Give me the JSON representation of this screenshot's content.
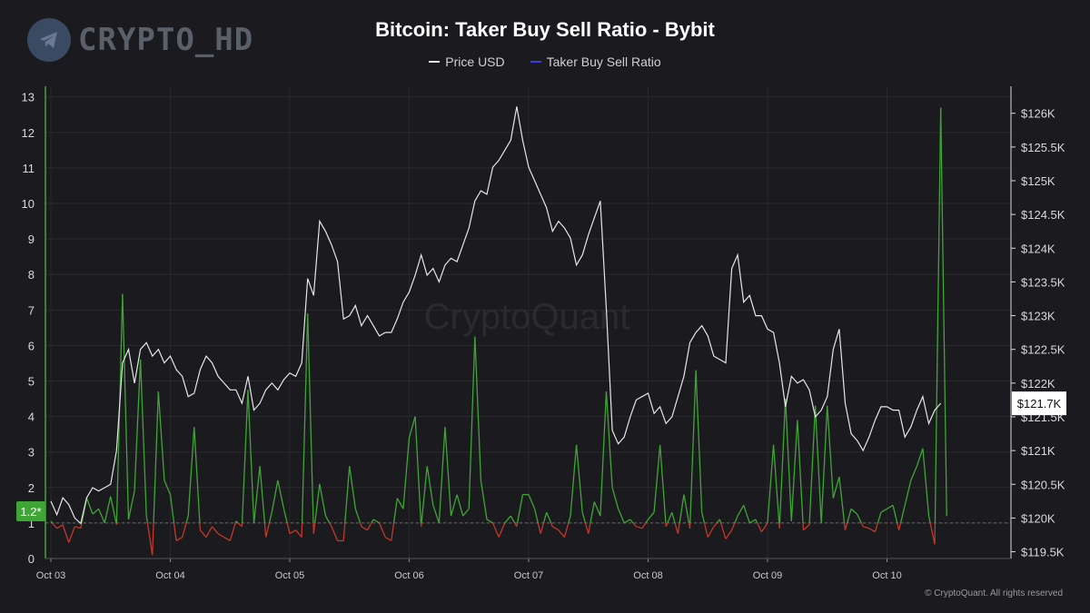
{
  "brand": {
    "name": "CRYPTO_HD",
    "icon": "telegram-icon"
  },
  "watermark": "CryptoQuant",
  "footer": "© CryptoQuant. All rights reserved",
  "chart_data": {
    "type": "line",
    "title": "Bitcoin: Taker Buy Sell Ratio - Bybit",
    "legend_placement": "top-center",
    "grid": true,
    "colors": {
      "price": "#e6e6e6",
      "ratio_legend": "#3b3bd6",
      "ratio_up": "#3fa535",
      "ratio_down": "#c0392b",
      "badge": "#3fa535",
      "background": "#1b1b1f"
    },
    "x_ticks": [
      "Oct 03",
      "Oct 04",
      "Oct 05",
      "Oct 06",
      "Oct 07",
      "Oct 08",
      "Oct 09",
      "Oct 10"
    ],
    "x_range_days": [
      0,
      8.0
    ],
    "left_axis": {
      "ticks": [
        "0",
        "1",
        "2",
        "3",
        "4",
        "5",
        "6",
        "7",
        "8",
        "9",
        "10",
        "11",
        "12",
        "13"
      ],
      "range": [
        0,
        13.3
      ]
    },
    "right_axis": {
      "ticks": [
        "$119.5K",
        "$120K",
        "$120.5K",
        "$121K",
        "$121.5K",
        "$122K",
        "$122.5K",
        "$123K",
        "$123.5K",
        "$124K",
        "$124.5K",
        "$125K",
        "$125.5K",
        "$126K"
      ],
      "range": [
        119400,
        126400
      ]
    },
    "baseline": 1,
    "ratio_badge": "1.2*",
    "price_badge": "$121.7K",
    "series": [
      {
        "name": "Price USD",
        "axis": "right",
        "points": [
          [
            0.0,
            120.25
          ],
          [
            0.05,
            120.05
          ],
          [
            0.1,
            120.3
          ],
          [
            0.15,
            120.2
          ],
          [
            0.2,
            120.0
          ],
          [
            0.25,
            119.92
          ],
          [
            0.3,
            120.3
          ],
          [
            0.35,
            120.45
          ],
          [
            0.4,
            120.4
          ],
          [
            0.45,
            120.45
          ],
          [
            0.5,
            120.5
          ],
          [
            0.55,
            121.0
          ],
          [
            0.6,
            122.3
          ],
          [
            0.65,
            122.5
          ],
          [
            0.7,
            122.0
          ],
          [
            0.75,
            122.5
          ],
          [
            0.8,
            122.6
          ],
          [
            0.85,
            122.4
          ],
          [
            0.9,
            122.5
          ],
          [
            0.95,
            122.3
          ],
          [
            1.0,
            122.4
          ],
          [
            1.05,
            122.2
          ],
          [
            1.1,
            122.1
          ],
          [
            1.15,
            121.8
          ],
          [
            1.2,
            121.85
          ],
          [
            1.25,
            122.2
          ],
          [
            1.3,
            122.4
          ],
          [
            1.35,
            122.3
          ],
          [
            1.4,
            122.1
          ],
          [
            1.45,
            122.0
          ],
          [
            1.5,
            121.9
          ],
          [
            1.55,
            121.9
          ],
          [
            1.6,
            121.7
          ],
          [
            1.65,
            122.1
          ],
          [
            1.7,
            121.6
          ],
          [
            1.75,
            121.7
          ],
          [
            1.8,
            121.9
          ],
          [
            1.85,
            122.0
          ],
          [
            1.9,
            121.9
          ],
          [
            1.95,
            122.05
          ],
          [
            2.0,
            122.15
          ],
          [
            2.05,
            122.1
          ],
          [
            2.1,
            122.3
          ],
          [
            2.15,
            123.55
          ],
          [
            2.2,
            123.3
          ],
          [
            2.25,
            124.4
          ],
          [
            2.3,
            124.25
          ],
          [
            2.35,
            124.05
          ],
          [
            2.4,
            123.8
          ],
          [
            2.45,
            122.95
          ],
          [
            2.5,
            123.0
          ],
          [
            2.55,
            123.15
          ],
          [
            2.6,
            122.85
          ],
          [
            2.65,
            123.0
          ],
          [
            2.7,
            122.85
          ],
          [
            2.75,
            122.7
          ],
          [
            2.8,
            122.75
          ],
          [
            2.85,
            122.75
          ],
          [
            2.9,
            122.95
          ],
          [
            2.95,
            123.2
          ],
          [
            3.0,
            123.35
          ],
          [
            3.05,
            123.6
          ],
          [
            3.1,
            123.9
          ],
          [
            3.15,
            123.6
          ],
          [
            3.2,
            123.7
          ],
          [
            3.25,
            123.5
          ],
          [
            3.3,
            123.75
          ],
          [
            3.35,
            123.85
          ],
          [
            3.4,
            123.8
          ],
          [
            3.45,
            124.05
          ],
          [
            3.5,
            124.3
          ],
          [
            3.55,
            124.7
          ],
          [
            3.6,
            124.85
          ],
          [
            3.65,
            124.8
          ],
          [
            3.7,
            125.2
          ],
          [
            3.75,
            125.3
          ],
          [
            3.8,
            125.45
          ],
          [
            3.85,
            125.6
          ],
          [
            3.9,
            126.1
          ],
          [
            3.95,
            125.6
          ],
          [
            4.0,
            125.2
          ],
          [
            4.05,
            125.0
          ],
          [
            4.1,
            124.8
          ],
          [
            4.15,
            124.6
          ],
          [
            4.2,
            124.25
          ],
          [
            4.25,
            124.4
          ],
          [
            4.3,
            124.3
          ],
          [
            4.35,
            124.15
          ],
          [
            4.4,
            123.75
          ],
          [
            4.45,
            123.9
          ],
          [
            4.5,
            124.2
          ],
          [
            4.55,
            124.45
          ],
          [
            4.6,
            124.7
          ],
          [
            4.65,
            123.1
          ],
          [
            4.7,
            121.3
          ],
          [
            4.75,
            121.1
          ],
          [
            4.8,
            121.2
          ],
          [
            4.85,
            121.5
          ],
          [
            4.9,
            121.75
          ],
          [
            4.95,
            121.8
          ],
          [
            5.0,
            121.85
          ],
          [
            5.05,
            121.55
          ],
          [
            5.1,
            121.65
          ],
          [
            5.15,
            121.4
          ],
          [
            5.2,
            121.5
          ],
          [
            5.25,
            121.8
          ],
          [
            5.3,
            122.1
          ],
          [
            5.35,
            122.6
          ],
          [
            5.4,
            122.75
          ],
          [
            5.45,
            122.85
          ],
          [
            5.5,
            122.7
          ],
          [
            5.55,
            122.4
          ],
          [
            5.6,
            122.35
          ],
          [
            5.65,
            122.3
          ],
          [
            5.7,
            123.7
          ],
          [
            5.75,
            123.9
          ],
          [
            5.8,
            123.2
          ],
          [
            5.85,
            123.3
          ],
          [
            5.9,
            123.0
          ],
          [
            5.95,
            123.0
          ],
          [
            6.0,
            122.8
          ],
          [
            6.05,
            122.75
          ],
          [
            6.1,
            122.3
          ],
          [
            6.15,
            121.65
          ],
          [
            6.2,
            122.1
          ],
          [
            6.25,
            122.0
          ],
          [
            6.3,
            122.05
          ],
          [
            6.35,
            121.9
          ],
          [
            6.4,
            121.5
          ],
          [
            6.45,
            121.6
          ],
          [
            6.5,
            121.8
          ],
          [
            6.55,
            122.5
          ],
          [
            6.6,
            122.8
          ],
          [
            6.65,
            121.7
          ],
          [
            6.7,
            121.25
          ],
          [
            6.75,
            121.15
          ],
          [
            6.8,
            121.0
          ],
          [
            6.85,
            121.2
          ],
          [
            6.9,
            121.45
          ],
          [
            6.95,
            121.65
          ],
          [
            7.0,
            121.65
          ],
          [
            7.05,
            121.6
          ],
          [
            7.1,
            121.6
          ],
          [
            7.15,
            121.2
          ],
          [
            7.2,
            121.35
          ],
          [
            7.25,
            121.6
          ],
          [
            7.3,
            121.8
          ],
          [
            7.35,
            121.4
          ],
          [
            7.4,
            121.6
          ],
          [
            7.45,
            121.7
          ]
        ]
      },
      {
        "name": "Taker Buy Sell Ratio",
        "axis": "left",
        "points": [
          [
            0.0,
            1.05
          ],
          [
            0.05,
            0.85
          ],
          [
            0.1,
            0.95
          ],
          [
            0.15,
            0.45
          ],
          [
            0.2,
            0.9
          ],
          [
            0.25,
            0.85
          ],
          [
            0.3,
            1.7
          ],
          [
            0.35,
            1.25
          ],
          [
            0.4,
            1.4
          ],
          [
            0.45,
            1.0
          ],
          [
            0.5,
            1.75
          ],
          [
            0.55,
            0.95
          ],
          [
            0.6,
            7.45
          ],
          [
            0.65,
            1.1
          ],
          [
            0.7,
            1.9
          ],
          [
            0.75,
            5.6
          ],
          [
            0.8,
            1.2
          ],
          [
            0.85,
            0.1
          ],
          [
            0.9,
            4.7
          ],
          [
            0.95,
            2.2
          ],
          [
            1.0,
            1.8
          ],
          [
            1.05,
            0.5
          ],
          [
            1.1,
            0.6
          ],
          [
            1.15,
            1.2
          ],
          [
            1.2,
            3.7
          ],
          [
            1.25,
            0.8
          ],
          [
            1.3,
            0.6
          ],
          [
            1.35,
            0.9
          ],
          [
            1.4,
            0.7
          ],
          [
            1.45,
            0.6
          ],
          [
            1.5,
            0.5
          ],
          [
            1.55,
            1.05
          ],
          [
            1.6,
            0.9
          ],
          [
            1.65,
            4.75
          ],
          [
            1.7,
            1.0
          ],
          [
            1.75,
            2.6
          ],
          [
            1.8,
            0.6
          ],
          [
            1.85,
            1.3
          ],
          [
            1.9,
            2.2
          ],
          [
            1.95,
            1.4
          ],
          [
            2.0,
            0.7
          ],
          [
            2.05,
            0.8
          ],
          [
            2.1,
            0.6
          ],
          [
            2.15,
            6.9
          ],
          [
            2.2,
            0.7
          ],
          [
            2.25,
            2.1
          ],
          [
            2.3,
            1.2
          ],
          [
            2.35,
            0.9
          ],
          [
            2.4,
            0.5
          ],
          [
            2.45,
            0.5
          ],
          [
            2.5,
            2.6
          ],
          [
            2.55,
            1.4
          ],
          [
            2.6,
            0.9
          ],
          [
            2.65,
            0.8
          ],
          [
            2.7,
            1.1
          ],
          [
            2.75,
            1.0
          ],
          [
            2.8,
            0.6
          ],
          [
            2.85,
            0.5
          ],
          [
            2.9,
            1.7
          ],
          [
            2.95,
            1.4
          ],
          [
            3.0,
            3.4
          ],
          [
            3.05,
            4.0
          ],
          [
            3.1,
            0.9
          ],
          [
            3.15,
            2.6
          ],
          [
            3.2,
            1.5
          ],
          [
            3.25,
            1.0
          ],
          [
            3.3,
            3.7
          ],
          [
            3.35,
            1.2
          ],
          [
            3.4,
            1.8
          ],
          [
            3.45,
            1.2
          ],
          [
            3.5,
            1.4
          ],
          [
            3.55,
            6.25
          ],
          [
            3.6,
            2.2
          ],
          [
            3.65,
            1.1
          ],
          [
            3.7,
            1.0
          ],
          [
            3.75,
            0.6
          ],
          [
            3.8,
            1.0
          ],
          [
            3.85,
            1.2
          ],
          [
            3.9,
            0.9
          ],
          [
            3.95,
            1.8
          ],
          [
            4.0,
            1.8
          ],
          [
            4.05,
            1.4
          ],
          [
            4.1,
            0.7
          ],
          [
            4.15,
            1.3
          ],
          [
            4.2,
            0.9
          ],
          [
            4.25,
            0.8
          ],
          [
            4.3,
            0.6
          ],
          [
            4.35,
            1.2
          ],
          [
            4.4,
            3.2
          ],
          [
            4.45,
            1.3
          ],
          [
            4.5,
            0.7
          ],
          [
            4.55,
            1.6
          ],
          [
            4.6,
            1.2
          ],
          [
            4.65,
            4.7
          ],
          [
            4.7,
            2.0
          ],
          [
            4.75,
            1.4
          ],
          [
            4.8,
            1.0
          ],
          [
            4.85,
            1.1
          ],
          [
            4.9,
            0.9
          ],
          [
            4.95,
            0.85
          ],
          [
            5.0,
            1.1
          ],
          [
            5.05,
            1.3
          ],
          [
            5.1,
            3.2
          ],
          [
            5.15,
            0.9
          ],
          [
            5.2,
            1.3
          ],
          [
            5.25,
            0.7
          ],
          [
            5.3,
            1.8
          ],
          [
            5.35,
            0.85
          ],
          [
            5.4,
            5.3
          ],
          [
            5.45,
            1.3
          ],
          [
            5.5,
            0.6
          ],
          [
            5.55,
            0.9
          ],
          [
            5.6,
            1.1
          ],
          [
            5.65,
            0.55
          ],
          [
            5.7,
            0.8
          ],
          [
            5.75,
            1.2
          ],
          [
            5.8,
            1.5
          ],
          [
            5.85,
            1.0
          ],
          [
            5.9,
            1.1
          ],
          [
            5.95,
            0.75
          ],
          [
            6.0,
            1.0
          ],
          [
            6.05,
            3.2
          ],
          [
            6.1,
            0.85
          ],
          [
            6.15,
            4.5
          ],
          [
            6.2,
            1.05
          ],
          [
            6.25,
            3.9
          ],
          [
            6.3,
            0.8
          ],
          [
            6.35,
            0.95
          ],
          [
            6.4,
            4.3
          ],
          [
            6.45,
            1.0
          ],
          [
            6.5,
            4.3
          ],
          [
            6.55,
            1.7
          ],
          [
            6.6,
            2.3
          ],
          [
            6.65,
            0.8
          ],
          [
            6.7,
            1.4
          ],
          [
            6.75,
            1.25
          ],
          [
            6.8,
            0.9
          ],
          [
            6.85,
            0.85
          ],
          [
            6.9,
            0.75
          ],
          [
            6.95,
            1.3
          ],
          [
            7.0,
            1.4
          ],
          [
            7.05,
            1.5
          ],
          [
            7.1,
            0.8
          ],
          [
            7.15,
            1.5
          ],
          [
            7.2,
            2.2
          ],
          [
            7.25,
            2.6
          ],
          [
            7.3,
            3.1
          ],
          [
            7.35,
            1.2
          ],
          [
            7.4,
            0.4
          ],
          [
            7.45,
            12.7
          ],
          [
            7.5,
            1.2
          ]
        ]
      }
    ]
  }
}
